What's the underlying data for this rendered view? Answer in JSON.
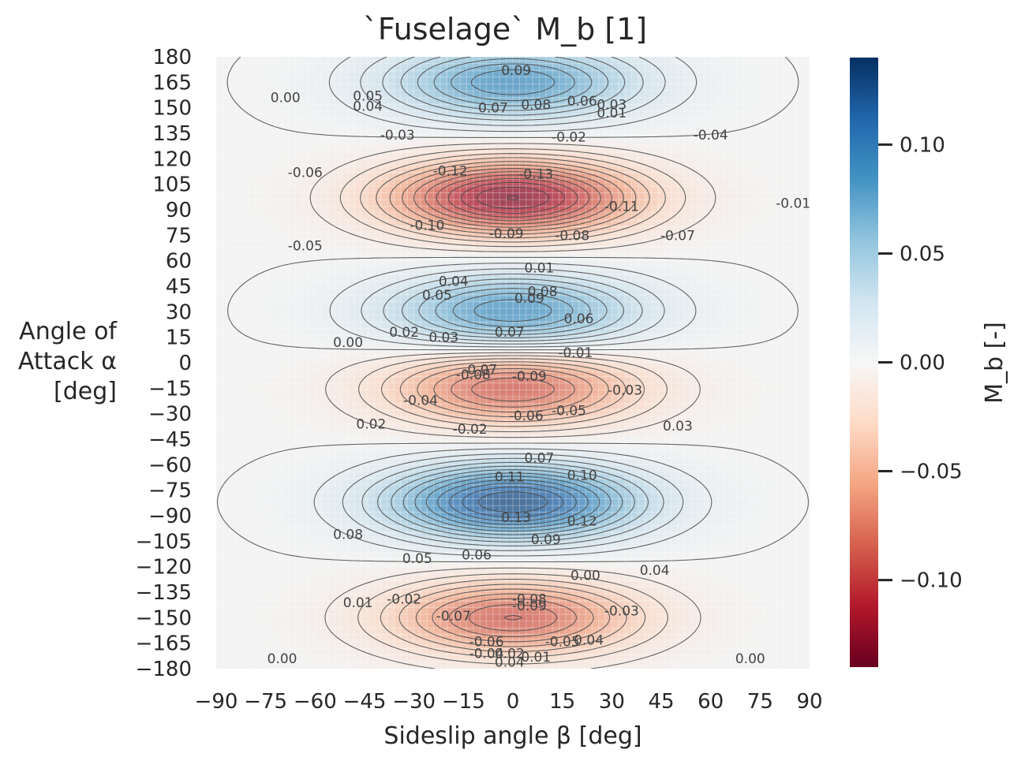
{
  "chart_data": {
    "type": "heatmap",
    "variant": "filled-contour",
    "title": "`Fuselage` M_b [1]",
    "xlabel": "Sideslip angle β [deg]",
    "ylabel_lines": [
      "Angle of",
      "Attack α",
      "[deg]"
    ],
    "colorbar_label": "M_b [-]",
    "colormap": "RdBu",
    "colors": {
      "negative": "#67001f",
      "zero": "#f7f7f7",
      "positive": "#053061"
    },
    "xlim": [
      -90,
      90
    ],
    "ylim": [
      -180,
      180
    ],
    "clim": [
      -0.14,
      0.14
    ],
    "x_ticks": [
      "−90",
      "−75",
      "−60",
      "−45",
      "−30",
      "−15",
      "0",
      "15",
      "30",
      "45",
      "60",
      "75",
      "90"
    ],
    "y_ticks": [
      "180",
      "165",
      "150",
      "135",
      "120",
      "105",
      "90",
      "75",
      "60",
      "45",
      "30",
      "15",
      "0",
      "−15",
      "−30",
      "−45",
      "−60",
      "−75",
      "−90",
      "−105",
      "−120",
      "−135",
      "−150",
      "−165",
      "−180"
    ],
    "colorbar_ticks": [
      {
        "value": 0.1,
        "label": "0.10"
      },
      {
        "value": 0.05,
        "label": "0.05"
      },
      {
        "value": 0.0,
        "label": "0.00"
      },
      {
        "value": -0.05,
        "label": "−0.05"
      },
      {
        "value": -0.1,
        "label": "−0.10"
      }
    ],
    "extrema": [
      {
        "beta": 0,
        "alpha": 165,
        "value": 0.09
      },
      {
        "beta": 0,
        "alpha": 97,
        "value": -0.13
      },
      {
        "beta": 0,
        "alpha": 30,
        "value": 0.09
      },
      {
        "beta": 0,
        "alpha": -15,
        "value": -0.09
      },
      {
        "beta": 0,
        "alpha": -82,
        "value": 0.13
      },
      {
        "beta": 0,
        "alpha": -150,
        "value": -0.09
      }
    ],
    "contour_labels": [
      {
        "beta": 1,
        "alpha": 172,
        "text": "0.09"
      },
      {
        "beta": -44,
        "alpha": 157,
        "text": "0.05"
      },
      {
        "beta": -44,
        "alpha": 151,
        "text": "0.04"
      },
      {
        "beta": -6,
        "alpha": 150,
        "text": "0.07"
      },
      {
        "beta": 7,
        "alpha": 152,
        "text": "0.08"
      },
      {
        "beta": 21,
        "alpha": 154,
        "text": "0.06"
      },
      {
        "beta": 30,
        "alpha": 152,
        "text": "0.03"
      },
      {
        "beta": 30,
        "alpha": 147,
        "text": "0.01"
      },
      {
        "beta": -69,
        "alpha": 156,
        "text": "0.00"
      },
      {
        "beta": -35,
        "alpha": 134,
        "text": "-0.03"
      },
      {
        "beta": 17,
        "alpha": 133,
        "text": "-0.02"
      },
      {
        "beta": 60,
        "alpha": 134,
        "text": "-0.04"
      },
      {
        "beta": -63,
        "alpha": 112,
        "text": "-0.06"
      },
      {
        "beta": -19,
        "alpha": 113,
        "text": "-0.12"
      },
      {
        "beta": 7,
        "alpha": 111,
        "text": "-0.13"
      },
      {
        "beta": 33,
        "alpha": 92,
        "text": "-0.11"
      },
      {
        "beta": 85,
        "alpha": 94,
        "text": "-0.01"
      },
      {
        "beta": -26,
        "alpha": 81,
        "text": "-0.10"
      },
      {
        "beta": -2,
        "alpha": 76,
        "text": "-0.09"
      },
      {
        "beta": 18,
        "alpha": 75,
        "text": "-0.08"
      },
      {
        "beta": 50,
        "alpha": 75,
        "text": "-0.07"
      },
      {
        "beta": -63,
        "alpha": 69,
        "text": "-0.05"
      },
      {
        "beta": 8,
        "alpha": 56,
        "text": "0.01"
      },
      {
        "beta": -18,
        "alpha": 48,
        "text": "0.04"
      },
      {
        "beta": -23,
        "alpha": 40,
        "text": "0.05"
      },
      {
        "beta": 9,
        "alpha": 42,
        "text": "0.08"
      },
      {
        "beta": 5,
        "alpha": 38,
        "text": "0.09"
      },
      {
        "beta": 20,
        "alpha": 26,
        "text": "0.06"
      },
      {
        "beta": -33,
        "alpha": 18,
        "text": "0.02"
      },
      {
        "beta": -21,
        "alpha": 15,
        "text": "0.03"
      },
      {
        "beta": -1,
        "alpha": 18,
        "text": "0.07"
      },
      {
        "beta": -50,
        "alpha": 12,
        "text": "0.00"
      },
      {
        "beta": 19,
        "alpha": 6,
        "text": "-0.01"
      },
      {
        "beta": -10,
        "alpha": -4,
        "text": "-0.07"
      },
      {
        "beta": -12,
        "alpha": -7,
        "text": "-0.08"
      },
      {
        "beta": 5,
        "alpha": -8,
        "text": "-0.09"
      },
      {
        "beta": 34,
        "alpha": -16,
        "text": "-0.03"
      },
      {
        "beta": -28,
        "alpha": -22,
        "text": "-0.04"
      },
      {
        "beta": 17,
        "alpha": -28,
        "text": "-0.05"
      },
      {
        "beta": 4,
        "alpha": -31,
        "text": "-0.06"
      },
      {
        "beta": -13,
        "alpha": -39,
        "text": "-0.02"
      },
      {
        "beta": -43,
        "alpha": -36,
        "text": "0.02"
      },
      {
        "beta": 50,
        "alpha": -37,
        "text": "0.03"
      },
      {
        "beta": 8,
        "alpha": -56,
        "text": "0.07"
      },
      {
        "beta": 21,
        "alpha": -66,
        "text": "0.10"
      },
      {
        "beta": -1,
        "alpha": -67,
        "text": "0.11"
      },
      {
        "beta": 1,
        "alpha": -91,
        "text": "0.13"
      },
      {
        "beta": 21,
        "alpha": -93,
        "text": "0.12"
      },
      {
        "beta": -50,
        "alpha": -101,
        "text": "0.08"
      },
      {
        "beta": 10,
        "alpha": -104,
        "text": "0.09"
      },
      {
        "beta": -11,
        "alpha": -113,
        "text": "0.06"
      },
      {
        "beta": -29,
        "alpha": -115,
        "text": "0.05"
      },
      {
        "beta": 43,
        "alpha": -122,
        "text": "0.04"
      },
      {
        "beta": 22,
        "alpha": -125,
        "text": "0.00"
      },
      {
        "beta": -33,
        "alpha": -139,
        "text": "-0.02"
      },
      {
        "beta": -47,
        "alpha": -141,
        "text": "0.01"
      },
      {
        "beta": -18,
        "alpha": -149,
        "text": "-0.07"
      },
      {
        "beta": 5,
        "alpha": -139,
        "text": "-0.08"
      },
      {
        "beta": 5,
        "alpha": -143,
        "text": "-0.09"
      },
      {
        "beta": 33,
        "alpha": -146,
        "text": "-0.03"
      },
      {
        "beta": -8,
        "alpha": -164,
        "text": "-0.06"
      },
      {
        "beta": 15,
        "alpha": -164,
        "text": "-0.05"
      },
      {
        "beta": 23,
        "alpha": -163,
        "text": "0.04"
      },
      {
        "beta": -8,
        "alpha": -171,
        "text": "-0.04"
      },
      {
        "beta": -1,
        "alpha": -171,
        "text": "0.02"
      },
      {
        "beta": 7,
        "alpha": -173,
        "text": "0.01"
      },
      {
        "beta": -1,
        "alpha": -176,
        "text": "0.04"
      },
      {
        "beta": -70,
        "alpha": -174,
        "text": "0.00"
      },
      {
        "beta": 72,
        "alpha": -174,
        "text": "0.00"
      }
    ]
  }
}
